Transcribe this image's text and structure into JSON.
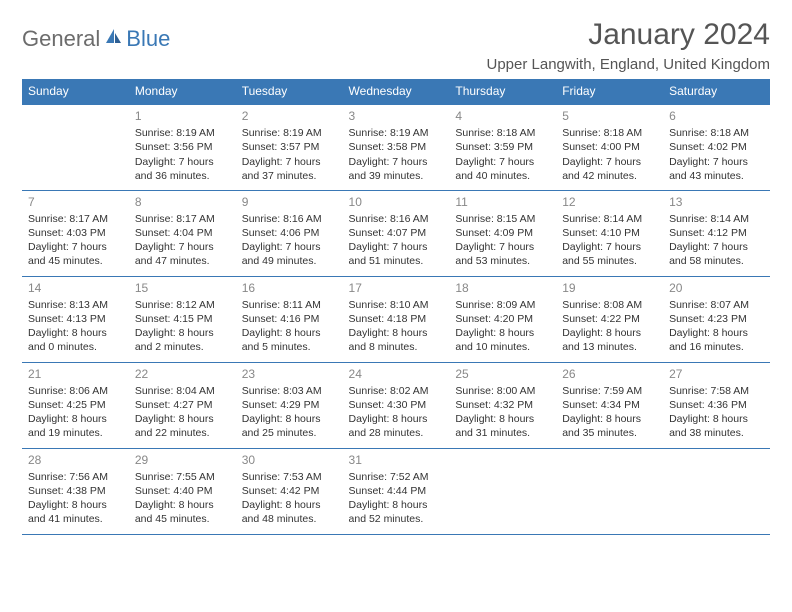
{
  "logo": {
    "part1": "General",
    "part2": "Blue"
  },
  "title": "January 2024",
  "location": "Upper Langwith, England, United Kingdom",
  "colors": {
    "header_bg": "#3a78b5",
    "header_text": "#ffffff",
    "border": "#3a78b5",
    "daynum": "#888888",
    "body_text": "#333333",
    "title_text": "#555555",
    "logo_gray": "#6c6c6c",
    "logo_blue": "#3a78b5",
    "background": "#ffffff"
  },
  "weekdays": [
    "Sunday",
    "Monday",
    "Tuesday",
    "Wednesday",
    "Thursday",
    "Friday",
    "Saturday"
  ],
  "weeks": [
    [
      null,
      {
        "n": "1",
        "r": "8:19 AM",
        "s": "3:56 PM",
        "d": "7 hours and 36 minutes."
      },
      {
        "n": "2",
        "r": "8:19 AM",
        "s": "3:57 PM",
        "d": "7 hours and 37 minutes."
      },
      {
        "n": "3",
        "r": "8:19 AM",
        "s": "3:58 PM",
        "d": "7 hours and 39 minutes."
      },
      {
        "n": "4",
        "r": "8:18 AM",
        "s": "3:59 PM",
        "d": "7 hours and 40 minutes."
      },
      {
        "n": "5",
        "r": "8:18 AM",
        "s": "4:00 PM",
        "d": "7 hours and 42 minutes."
      },
      {
        "n": "6",
        "r": "8:18 AM",
        "s": "4:02 PM",
        "d": "7 hours and 43 minutes."
      }
    ],
    [
      {
        "n": "7",
        "r": "8:17 AM",
        "s": "4:03 PM",
        "d": "7 hours and 45 minutes."
      },
      {
        "n": "8",
        "r": "8:17 AM",
        "s": "4:04 PM",
        "d": "7 hours and 47 minutes."
      },
      {
        "n": "9",
        "r": "8:16 AM",
        "s": "4:06 PM",
        "d": "7 hours and 49 minutes."
      },
      {
        "n": "10",
        "r": "8:16 AM",
        "s": "4:07 PM",
        "d": "7 hours and 51 minutes."
      },
      {
        "n": "11",
        "r": "8:15 AM",
        "s": "4:09 PM",
        "d": "7 hours and 53 minutes."
      },
      {
        "n": "12",
        "r": "8:14 AM",
        "s": "4:10 PM",
        "d": "7 hours and 55 minutes."
      },
      {
        "n": "13",
        "r": "8:14 AM",
        "s": "4:12 PM",
        "d": "7 hours and 58 minutes."
      }
    ],
    [
      {
        "n": "14",
        "r": "8:13 AM",
        "s": "4:13 PM",
        "d": "8 hours and 0 minutes."
      },
      {
        "n": "15",
        "r": "8:12 AM",
        "s": "4:15 PM",
        "d": "8 hours and 2 minutes."
      },
      {
        "n": "16",
        "r": "8:11 AM",
        "s": "4:16 PM",
        "d": "8 hours and 5 minutes."
      },
      {
        "n": "17",
        "r": "8:10 AM",
        "s": "4:18 PM",
        "d": "8 hours and 8 minutes."
      },
      {
        "n": "18",
        "r": "8:09 AM",
        "s": "4:20 PM",
        "d": "8 hours and 10 minutes."
      },
      {
        "n": "19",
        "r": "8:08 AM",
        "s": "4:22 PM",
        "d": "8 hours and 13 minutes."
      },
      {
        "n": "20",
        "r": "8:07 AM",
        "s": "4:23 PM",
        "d": "8 hours and 16 minutes."
      }
    ],
    [
      {
        "n": "21",
        "r": "8:06 AM",
        "s": "4:25 PM",
        "d": "8 hours and 19 minutes."
      },
      {
        "n": "22",
        "r": "8:04 AM",
        "s": "4:27 PM",
        "d": "8 hours and 22 minutes."
      },
      {
        "n": "23",
        "r": "8:03 AM",
        "s": "4:29 PM",
        "d": "8 hours and 25 minutes."
      },
      {
        "n": "24",
        "r": "8:02 AM",
        "s": "4:30 PM",
        "d": "8 hours and 28 minutes."
      },
      {
        "n": "25",
        "r": "8:00 AM",
        "s": "4:32 PM",
        "d": "8 hours and 31 minutes."
      },
      {
        "n": "26",
        "r": "7:59 AM",
        "s": "4:34 PM",
        "d": "8 hours and 35 minutes."
      },
      {
        "n": "27",
        "r": "7:58 AM",
        "s": "4:36 PM",
        "d": "8 hours and 38 minutes."
      }
    ],
    [
      {
        "n": "28",
        "r": "7:56 AM",
        "s": "4:38 PM",
        "d": "8 hours and 41 minutes."
      },
      {
        "n": "29",
        "r": "7:55 AM",
        "s": "4:40 PM",
        "d": "8 hours and 45 minutes."
      },
      {
        "n": "30",
        "r": "7:53 AM",
        "s": "4:42 PM",
        "d": "8 hours and 48 minutes."
      },
      {
        "n": "31",
        "r": "7:52 AM",
        "s": "4:44 PM",
        "d": "8 hours and 52 minutes."
      },
      null,
      null,
      null
    ]
  ],
  "labels": {
    "sunrise": "Sunrise:",
    "sunset": "Sunset:",
    "daylight": "Daylight:"
  }
}
